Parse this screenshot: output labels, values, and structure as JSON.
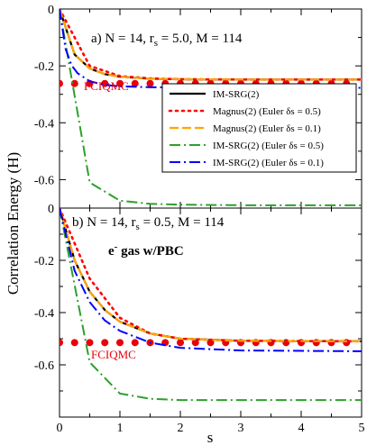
{
  "chart_data": [
    {
      "type": "line",
      "panel": "a",
      "title": "a)  N = 14, r_s = 5.0, M = 114",
      "title_parts": {
        "prefix": "a)  N = 14, r",
        "sub": "s",
        "suffix": " = 5.0, M = 114"
      },
      "ylabel": "Correlation Energy (H)",
      "xlabel": "",
      "xlim": [
        0,
        5
      ],
      "ylim": [
        -0.7,
        0
      ],
      "yticks": [
        0,
        -0.2,
        -0.4,
        -0.6
      ],
      "ytick_labels": [
        "0",
        "-0.2",
        "-0.4",
        "-0.6"
      ],
      "reference": {
        "name": "FCIQMC",
        "value": -0.262,
        "color": "#e8000b"
      },
      "series": [
        {
          "name": "IM-SRG(2)",
          "style": "solid",
          "color": "#000000",
          "x": [
            0,
            0.25,
            0.5,
            0.75,
            1,
            1.5,
            2,
            3,
            5
          ],
          "y": [
            0,
            -0.16,
            -0.209,
            -0.229,
            -0.238,
            -0.245,
            -0.247,
            -0.248,
            -0.248
          ]
        },
        {
          "name": "Magnus(2) (Euler δs = 0.5)",
          "style": "dotted",
          "color": "#ff0000",
          "x": [
            0,
            0.5,
            1,
            1.5,
            2,
            3,
            5
          ],
          "y": [
            0,
            -0.2,
            -0.236,
            -0.244,
            -0.247,
            -0.248,
            -0.248
          ]
        },
        {
          "name": "Magnus(2) (Euler δs = 0.1)",
          "style": "dashed",
          "color": "#ffa500",
          "x": [
            0,
            0.25,
            0.5,
            0.75,
            1,
            1.5,
            2,
            3,
            5
          ],
          "y": [
            0,
            -0.16,
            -0.209,
            -0.229,
            -0.238,
            -0.245,
            -0.247,
            -0.248,
            -0.248
          ]
        },
        {
          "name": "IM-SRG(2) (Euler δs = 0.5)",
          "style": "dashdot",
          "color": "#2ca02c",
          "x": [
            0,
            0.5,
            1,
            1.5,
            2,
            3,
            4,
            5
          ],
          "y": [
            0,
            -0.61,
            -0.674,
            -0.685,
            -0.688,
            -0.69,
            -0.69,
            -0.69
          ]
        },
        {
          "name": "IM-SRG(2) (Euler δs = 0.1)",
          "style": "dashdot",
          "color": "#0000ff",
          "x": [
            0,
            0.1,
            0.2,
            0.3,
            0.5,
            0.75,
            1,
            1.5,
            2,
            3,
            5
          ],
          "y": [
            0,
            -0.14,
            -0.198,
            -0.226,
            -0.254,
            -0.267,
            -0.272,
            -0.275,
            -0.276,
            -0.277,
            -0.277
          ]
        }
      ]
    },
    {
      "type": "line",
      "panel": "b",
      "title": "b) N = 14, r_s = 0.5, M = 114",
      "title_parts": {
        "prefix": "b) N = 14, r",
        "sub": "s",
        "suffix": " = 0.5, M = 114"
      },
      "subtitle": "e⁻ gas w/PBC",
      "subtitle_parts": {
        "prefix": "e",
        "sup": "-",
        "suffix": " gas w/PBC"
      },
      "xlabel": "s",
      "xlim": [
        0,
        5
      ],
      "ylim": [
        -0.8,
        0
      ],
      "xticks": [
        0,
        1,
        2,
        3,
        4,
        5
      ],
      "xtick_labels": [
        "0",
        "1",
        "2",
        "3",
        "4",
        "5"
      ],
      "yticks": [
        0,
        -0.2,
        -0.4,
        -0.6
      ],
      "ytick_labels": [
        "0",
        "-0.2",
        "-0.4",
        "-0.6"
      ],
      "reference": {
        "name": "FCIQMC",
        "value": -0.515,
        "color": "#e8000b"
      },
      "series": [
        {
          "name": "IM-SRG(2)",
          "style": "solid",
          "color": "#000000",
          "x": [
            0,
            0.25,
            0.5,
            0.75,
            1,
            1.5,
            2,
            3,
            5
          ],
          "y": [
            0,
            -0.2,
            -0.32,
            -0.39,
            -0.435,
            -0.48,
            -0.5,
            -0.508,
            -0.51
          ]
        },
        {
          "name": "Magnus(2) (Euler δs = 0.5)",
          "style": "dotted",
          "color": "#ff0000",
          "x": [
            0,
            0.5,
            1,
            1.5,
            2,
            3,
            5
          ],
          "y": [
            0,
            -0.27,
            -0.42,
            -0.48,
            -0.5,
            -0.508,
            -0.51
          ]
        },
        {
          "name": "Magnus(2) (Euler δs = 0.1)",
          "style": "dashed",
          "color": "#ffa500",
          "x": [
            0,
            0.25,
            0.5,
            0.75,
            1,
            1.5,
            2,
            3,
            5
          ],
          "y": [
            0,
            -0.2,
            -0.32,
            -0.39,
            -0.435,
            -0.48,
            -0.5,
            -0.508,
            -0.51
          ]
        },
        {
          "name": "IM-SRG(2) (Euler δs = 0.5)",
          "style": "dashdot",
          "color": "#2ca02c",
          "x": [
            0,
            0.5,
            1,
            1.5,
            2,
            3,
            4,
            5
          ],
          "y": [
            0,
            -0.59,
            -0.71,
            -0.73,
            -0.735,
            -0.735,
            -0.735,
            -0.735
          ]
        },
        {
          "name": "IM-SRG(2) (Euler δs = 0.1)",
          "style": "dashdot",
          "color": "#0000ff",
          "x": [
            0,
            0.25,
            0.5,
            0.75,
            1,
            1.5,
            2,
            3,
            5
          ],
          "y": [
            0,
            -0.24,
            -0.36,
            -0.43,
            -0.47,
            -0.515,
            -0.535,
            -0.545,
            -0.548
          ]
        }
      ]
    }
  ],
  "legend": {
    "entries": [
      {
        "label": "IM-SRG(2)",
        "style": "solid",
        "color": "#000000"
      },
      {
        "label": "Magnus(2) (Euler δs = 0.5)",
        "style": "dotted",
        "color": "#ff0000"
      },
      {
        "label": "Magnus(2) (Euler δs = 0.1)",
        "style": "dashed",
        "color": "#ffa500"
      },
      {
        "label": "IM-SRG(2) (Euler δs = 0.5)",
        "style": "dashdot",
        "color": "#2ca02c"
      },
      {
        "label": "IM-SRG(2) (Euler δs = 0.1)",
        "style": "dashdot",
        "color": "#0000ff"
      }
    ]
  }
}
